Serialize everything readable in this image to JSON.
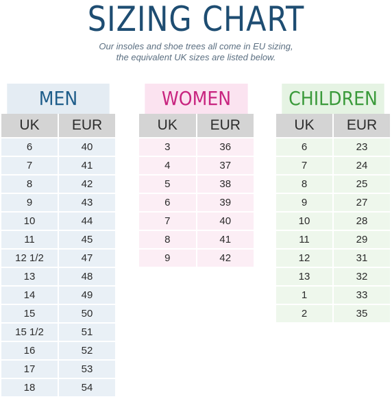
{
  "title": "SIZING CHART",
  "subtitle": {
    "line1": "Our insoles and shoe trees all come in EU sizing,",
    "line2": "the equivalent UK sizes are listed below."
  },
  "columns": {
    "uk": "UK",
    "eur": "EUR"
  },
  "tables": [
    {
      "id": "men",
      "heading": "MEN",
      "rows": [
        [
          "6",
          "40"
        ],
        [
          "7",
          "41"
        ],
        [
          "8",
          "42"
        ],
        [
          "9",
          "43"
        ],
        [
          "10",
          "44"
        ],
        [
          "11",
          "45"
        ],
        [
          "12 1/2",
          "47"
        ],
        [
          "13",
          "48"
        ],
        [
          "14",
          "49"
        ],
        [
          "15",
          "50"
        ],
        [
          "15 1/2",
          "51"
        ],
        [
          "16",
          "52"
        ],
        [
          "17",
          "53"
        ],
        [
          "18",
          "54"
        ]
      ]
    },
    {
      "id": "women",
      "heading": "WOMEN",
      "rows": [
        [
          "3",
          "36"
        ],
        [
          "4",
          "37"
        ],
        [
          "5",
          "38"
        ],
        [
          "6",
          "39"
        ],
        [
          "7",
          "40"
        ],
        [
          "8",
          "41"
        ],
        [
          "9",
          "42"
        ]
      ]
    },
    {
      "id": "children",
      "heading": "CHILDREN",
      "rows": [
        [
          "6",
          "23"
        ],
        [
          "7",
          "24"
        ],
        [
          "8",
          "25"
        ],
        [
          "9",
          "27"
        ],
        [
          "10",
          "28"
        ],
        [
          "11",
          "29"
        ],
        [
          "12",
          "31"
        ],
        [
          "13",
          "32"
        ],
        [
          "1",
          "33"
        ],
        [
          "2",
          "35"
        ]
      ]
    }
  ],
  "colors": {
    "title": "#1e4d72",
    "men": "#1e5d8a",
    "women": "#c8247f",
    "children": "#3a9a3a"
  }
}
